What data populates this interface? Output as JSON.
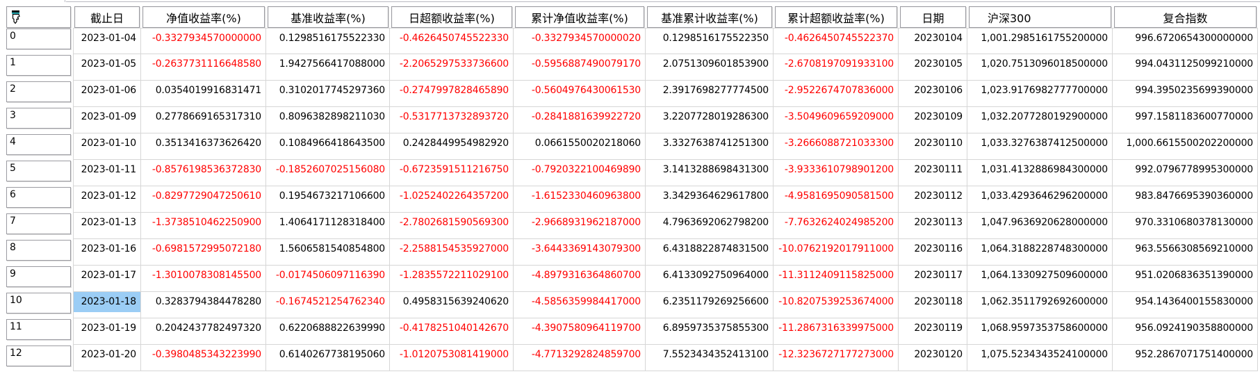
{
  "colors": {
    "negative_text": "#ff0000",
    "positive_text": "#000000",
    "selected_cell_bg": "#9bcdf5",
    "grid_line": "#d6d6d6",
    "header_border": "#9b9ba1",
    "corner_icon_accent": "#2ab8c0"
  },
  "icons": {
    "corner_header": "pointing-hand-icon"
  },
  "table": {
    "columns": [
      {
        "key": "row_id",
        "label": ""
      },
      {
        "key": "end_date",
        "label": "截止日"
      },
      {
        "key": "nav_return",
        "label": "净值收益率(%)"
      },
      {
        "key": "benchmark_return",
        "label": "基准收益率(%)"
      },
      {
        "key": "daily_excess_return",
        "label": "日超额收益率(%)"
      },
      {
        "key": "cum_nav_return",
        "label": "累计净值收益率(%)"
      },
      {
        "key": "benchmark_cum_return",
        "label": "基准累计收益率(%)"
      },
      {
        "key": "cum_excess_return",
        "label": "累计超额收益率(%)"
      },
      {
        "key": "date",
        "label": "日期"
      },
      {
        "key": "hs300",
        "label": "沪深300"
      },
      {
        "key": "composite_index",
        "label": "复合指数"
      }
    ],
    "rows": [
      [
        "0",
        "2023-01-04",
        "-0.3327934570000000",
        "0.1298516175522330",
        "-0.4626450745522330",
        "-0.3327934570000020",
        "0.1298516175522350",
        "-0.4626450745522370",
        "20230104",
        "1,001.2985161755200000",
        "996.6720654300000000"
      ],
      [
        "1",
        "2023-01-05",
        "-0.2637731116648580",
        "1.9427566417088000",
        "-2.2065297533736600",
        "-0.5956887490079170",
        "2.0751309601853900",
        "-2.6708197091933100",
        "20230105",
        "1,020.7513096018500000",
        "994.0431125099210000"
      ],
      [
        "2",
        "2023-01-06",
        "0.0354019916831471",
        "0.3102017745297360",
        "-0.2747997828465890",
        "-0.5604976430061530",
        "2.3917698277774500",
        "-2.9522674707836000",
        "20230106",
        "1,023.9176982777700000",
        "994.3950235699390000"
      ],
      [
        "3",
        "2023-01-09",
        "0.2778669165317310",
        "0.8096382898211030",
        "-0.5317713732893720",
        "-0.2841881639922720",
        "3.2207728019286300",
        "-3.5049609659209000",
        "20230109",
        "1,032.2077280192900000",
        "997.1581183600770000"
      ],
      [
        "4",
        "2023-01-10",
        "0.3513416373626420",
        "0.1084966418643500",
        "0.2428449954982920",
        "0.0661550020218060",
        "3.3327638741251300",
        "-3.2666088721033300",
        "20230110",
        "1,033.3276387412500000",
        "1,000.6615500202200000"
      ],
      [
        "5",
        "2023-01-11",
        "-0.8576198536372830",
        "-0.1852607025156080",
        "-0.6723591511216750",
        "-0.7920322100469890",
        "3.1413288698431300",
        "-3.9333610798901200",
        "20230111",
        "1,031.4132886984300000",
        "992.0796778995300000"
      ],
      [
        "6",
        "2023-01-12",
        "-0.8297729047250610",
        "0.1954673217106600",
        "-1.0252402264357200",
        "-1.6152330460963800",
        "3.3429364629617800",
        "-4.9581695090581500",
        "20230112",
        "1,033.4293646296200000",
        "983.8476695390360000"
      ],
      [
        "7",
        "2023-01-13",
        "-1.3738510462250900",
        "1.4064171128318400",
        "-2.7802681590569300",
        "-2.9668931962187000",
        "4.7963692062798200",
        "-7.7632624024985200",
        "20230113",
        "1,047.9636920628000000",
        "970.3310680378130000"
      ],
      [
        "8",
        "2023-01-16",
        "-0.6981572995072180",
        "1.5606581540854800",
        "-2.2588154535927000",
        "-3.6443369143079300",
        "6.4318822874831500",
        "-10.0762192017911000",
        "20230116",
        "1,064.3188228748300000",
        "963.5566308569210000"
      ],
      [
        "9",
        "2023-01-17",
        "-1.3010078308145500",
        "-0.0174506097116390",
        "-1.2835572211029100",
        "-4.8979316364860700",
        "6.4133092750964000",
        "-11.3112409115825000",
        "20230117",
        "1,064.1330927509600000",
        "951.0206836351390000"
      ],
      [
        "10",
        "2023-01-18",
        "0.3283794384478280",
        "-0.1674521254762340",
        "0.4958315639240620",
        "-4.5856359984417000",
        "6.2351179269256600",
        "-10.8207539253674000",
        "20230118",
        "1,062.3511792692600000",
        "954.1436400155830000"
      ],
      [
        "11",
        "2023-01-19",
        "0.2042437782497320",
        "0.6220688822639990",
        "-0.4178251040142670",
        "-4.3907580964119700",
        "6.8959735375855300",
        "-11.2867316339975000",
        "20230119",
        "1,068.9597353758600000",
        "956.0924190358800000"
      ],
      [
        "12",
        "2023-01-20",
        "-0.3980485343223990",
        "0.6140267738195060",
        "-1.0120753081419000",
        "-4.7713292824859700",
        "7.5523434352413100",
        "-12.3236727177273000",
        "20230120",
        "1,075.5234343524100000",
        "952.2867071751400000"
      ]
    ],
    "selected_cell": {
      "row_index": 10,
      "col_index": 1,
      "value": "2023-01-18"
    }
  }
}
